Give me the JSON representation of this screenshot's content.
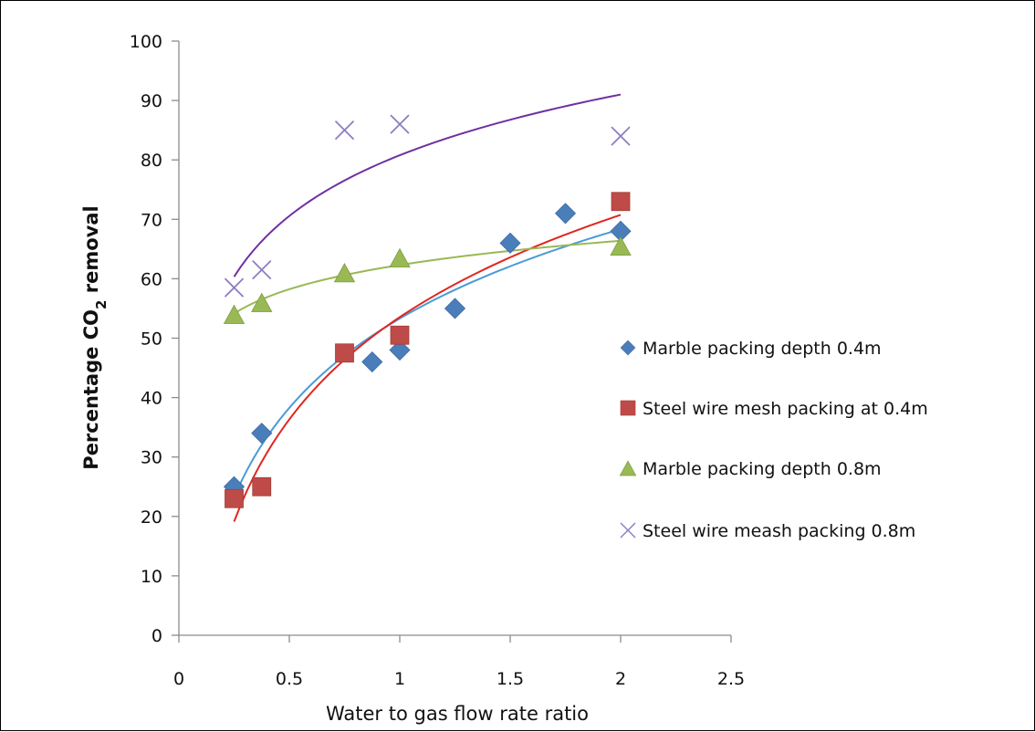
{
  "chart_data": {
    "type": "scatter",
    "xlabel": "Water to gas flow rate ratio",
    "ylabel": {
      "prefix": "Percentage CO",
      "subscript": "2",
      "suffix": " removal"
    },
    "xlim": [
      0,
      2.5
    ],
    "ylim": [
      0,
      100
    ],
    "x_ticks": [
      "0",
      "0.5",
      "1",
      "1.5",
      "2",
      "2.5"
    ],
    "y_ticks": [
      "0",
      "10",
      "20",
      "30",
      "40",
      "50",
      "60",
      "70",
      "80",
      "90",
      "100"
    ],
    "grid": false,
    "legend_position": "right",
    "series": [
      {
        "name": "Marble packing depth 0.4m",
        "marker": "diamond",
        "color": "#4a7ebb",
        "trend_color": "#4a9bd6",
        "points": [
          [
            0.25,
            25
          ],
          [
            0.375,
            34
          ],
          [
            0.875,
            46
          ],
          [
            1.0,
            48
          ],
          [
            1.25,
            55
          ],
          [
            1.5,
            66
          ],
          [
            1.75,
            71
          ],
          [
            2.0,
            68
          ]
        ]
      },
      {
        "name": "Steel wire mesh packing at 0.4m",
        "marker": "square",
        "color": "#be4b48",
        "trend_color": "#e0261e",
        "points": [
          [
            0.25,
            23
          ],
          [
            0.375,
            25
          ],
          [
            0.75,
            47.5
          ],
          [
            1.0,
            50.5
          ],
          [
            2.0,
            73
          ]
        ]
      },
      {
        "name": "Marble packing depth 0.8m",
        "marker": "triangle",
        "color": "#98b954",
        "trend_color": "#98b954",
        "points": [
          [
            0.25,
            54
          ],
          [
            0.375,
            56
          ],
          [
            0.75,
            61
          ],
          [
            1.0,
            63.5
          ],
          [
            2.0,
            65.5
          ]
        ]
      },
      {
        "name": "Steel wire meash packing 0.8m",
        "marker": "x",
        "color": "#8e7cc3",
        "trend_color": "#7030a0",
        "points": [
          [
            0.25,
            58.5
          ],
          [
            0.375,
            61.5
          ],
          [
            0.75,
            85
          ],
          [
            1.0,
            86
          ],
          [
            2.0,
            84
          ]
        ]
      }
    ]
  }
}
